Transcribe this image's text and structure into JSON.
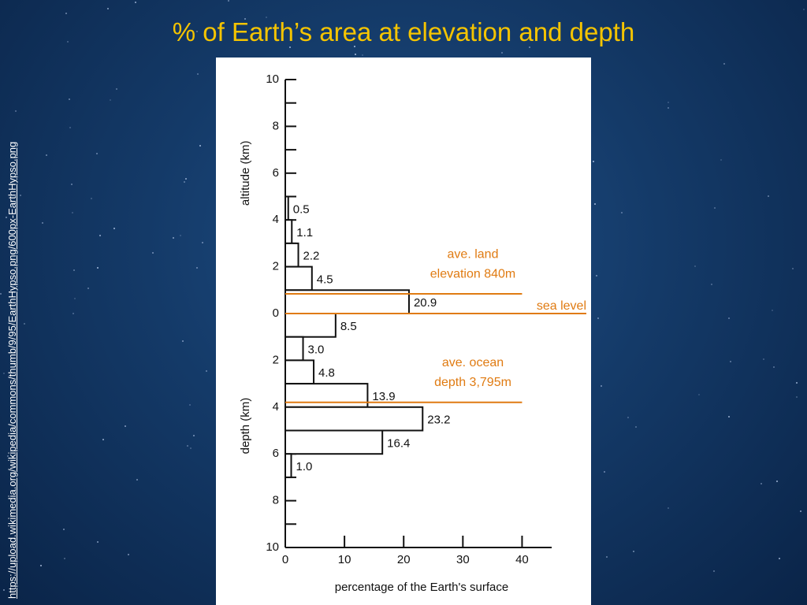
{
  "title": "% of Earth’s area at elevation and depth",
  "source": "https://upload.wikimedia.org/wikipedia/commons/thumb/9/95/EarthHypso.png/600px-EarthHypso.png",
  "chart_data": {
    "type": "histogram",
    "orientation": "horizontal",
    "xlabel": "percentage of the Earth's surface",
    "ylabel_top": "altitude (km)",
    "ylabel_bottom": "depth (km)",
    "bins": [
      5,
      4,
      3,
      2,
      1,
      0,
      -1,
      -2,
      -3,
      -4,
      -5,
      -6,
      -7
    ],
    "values": [
      0.5,
      1.1,
      2.2,
      4.5,
      20.9,
      8.5,
      3.0,
      4.8,
      13.9,
      23.2,
      16.4,
      1.0
    ],
    "value_labels": [
      "0.5",
      "1.1",
      "2.2",
      "4.5",
      "20.9",
      "8.5",
      "3.0",
      "4.8",
      "13.9",
      "23.2",
      "16.4",
      "1.0"
    ],
    "xlim": [
      0,
      45
    ],
    "xticks": [
      0,
      10,
      20,
      30,
      40
    ],
    "ylim": [
      -10,
      10
    ],
    "yticks": [
      {
        "value": 10,
        "label": "10"
      },
      8,
      6,
      4,
      2,
      0,
      {
        "value": -2,
        "label": "2"
      },
      {
        "value": -4,
        "label": "4"
      },
      {
        "value": -6,
        "label": "6"
      },
      {
        "value": -8,
        "label": "8"
      },
      {
        "value": -10,
        "label": "10"
      }
    ],
    "annotations": [
      {
        "value": 0.84,
        "lines": [
          "ave. land",
          "elevation 840m"
        ]
      },
      {
        "value": 0,
        "lines": [
          "sea level"
        ]
      },
      {
        "value": -3.795,
        "lines": [
          "ave. ocean",
          "depth 3,795m"
        ]
      }
    ],
    "color": "#ffffff",
    "annotation_color": "#e07b12"
  }
}
